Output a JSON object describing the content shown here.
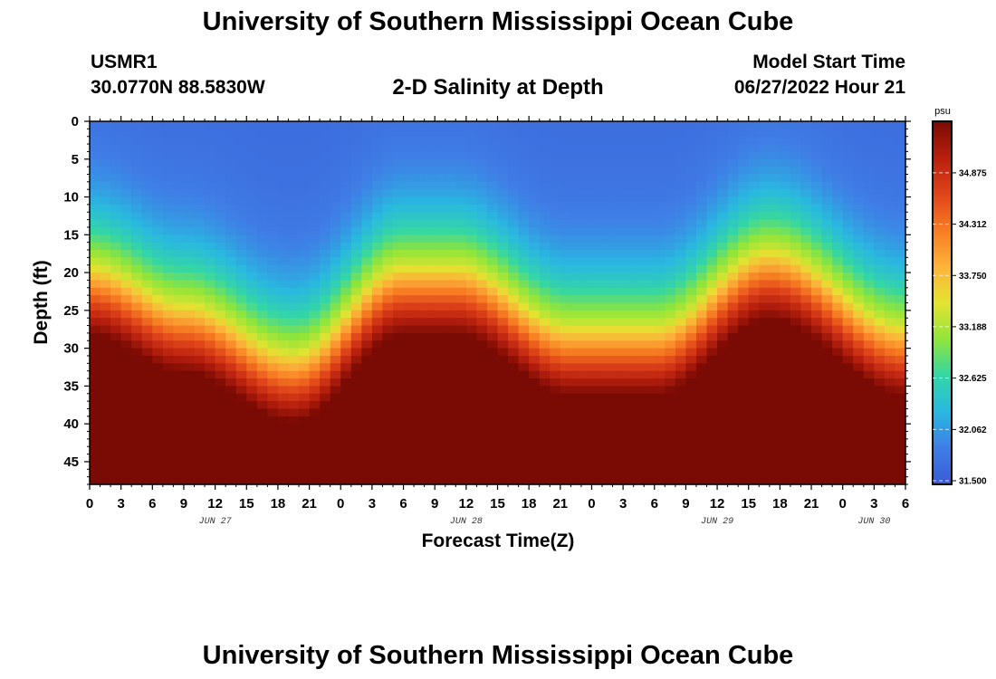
{
  "header": {
    "main_title": "University of Southern Mississippi Ocean Cube",
    "station_id": "USMR1",
    "station_coords": "30.0770N  88.5830W",
    "subtitle": "2-D Salinity at Depth",
    "model_label": "Model Start Time",
    "model_time": "06/27/2022 Hour 21",
    "footer_title": "University of Southern Mississippi Ocean Cube"
  },
  "chart_data": {
    "type": "heatmap",
    "title": "2-D Salinity at Depth",
    "xlabel": "Forecast Time(Z)",
    "ylabel": "Depth (ft)",
    "x_hours_range": [
      0,
      78
    ],
    "x_tick_labels": [
      "0",
      "3",
      "6",
      "9",
      "12",
      "15",
      "18",
      "21",
      "0",
      "3",
      "6",
      "9",
      "12",
      "15",
      "18",
      "21",
      "0",
      "3",
      "6",
      "9",
      "12",
      "15",
      "18",
      "21",
      "0",
      "3",
      "6"
    ],
    "date_labels": [
      {
        "text": "JUN 27",
        "hour": 12
      },
      {
        "text": "JUN 28",
        "hour": 36
      },
      {
        "text": "JUN 29",
        "hour": 60
      },
      {
        "text": "JUN 30",
        "hour": 75
      }
    ],
    "ylim": [
      0,
      48
    ],
    "y_tick_labels": [
      "0",
      "5",
      "10",
      "15",
      "20",
      "25",
      "30",
      "35",
      "40",
      "45"
    ],
    "colorbar": {
      "unit": "psu",
      "range": [
        31.5,
        35.4
      ],
      "tick_labels": [
        "34.875",
        "34.312",
        "33.750",
        "33.188",
        "32.625",
        "32.062",
        "31.500"
      ],
      "colors": [
        "#3b5bd6",
        "#3f7ee6",
        "#29b8e0",
        "#33d6a6",
        "#8fe53a",
        "#e3e330",
        "#fcb23a",
        "#f77c22",
        "#e0441a",
        "#b8200e",
        "#7a0a04"
      ]
    },
    "halocline_depth_ft": [
      {
        "hour": 0,
        "depth": 19
      },
      {
        "hour": 9,
        "depth": 24
      },
      {
        "hour": 19.5,
        "depth": 30.5
      },
      {
        "hour": 30,
        "depth": 19
      },
      {
        "hour": 35,
        "depth": 19
      },
      {
        "hour": 46,
        "depth": 27
      },
      {
        "hour": 54,
        "depth": 27
      },
      {
        "hour": 65,
        "depth": 17
      },
      {
        "hour": 78,
        "depth": 27
      }
    ],
    "surface_salinity_psu": 31.7,
    "bottom_salinity_psu": 35.4
  }
}
